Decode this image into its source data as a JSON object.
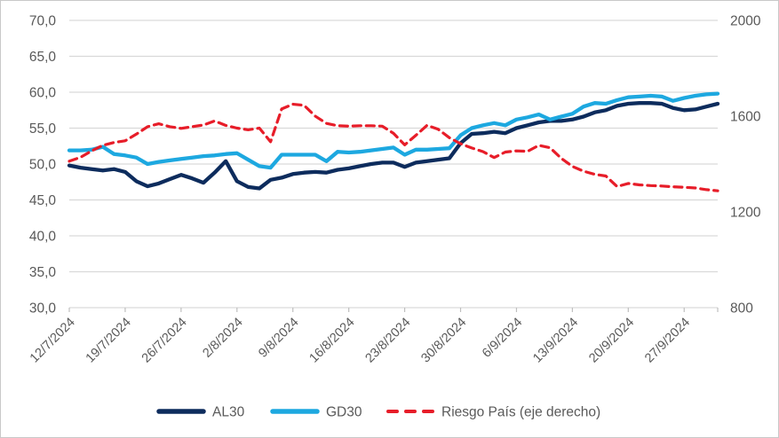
{
  "chart_data": {
    "type": "line",
    "title": "",
    "x_tick_labels": [
      "12/7/2024",
      "19/7/2024",
      "26/7/2024",
      "2/8/2024",
      "9/8/2024",
      "16/8/2024",
      "23/8/2024",
      "30/8/2024",
      "6/9/2024",
      "13/9/2024",
      "20/9/2024",
      "27/9/2024"
    ],
    "x_dates": [
      "12/7/2024",
      "15/7/2024",
      "16/7/2024",
      "17/7/2024",
      "18/7/2024",
      "19/7/2024",
      "22/7/2024",
      "23/7/2024",
      "24/7/2024",
      "25/7/2024",
      "26/7/2024",
      "29/7/2024",
      "30/7/2024",
      "31/7/2024",
      "1/8/2024",
      "2/8/2024",
      "5/8/2024",
      "6/8/2024",
      "7/8/2024",
      "8/8/2024",
      "9/8/2024",
      "12/8/2024",
      "13/8/2024",
      "14/8/2024",
      "15/8/2024",
      "16/8/2024",
      "19/8/2024",
      "20/8/2024",
      "21/8/2024",
      "22/8/2024",
      "23/8/2024",
      "26/8/2024",
      "27/8/2024",
      "28/8/2024",
      "29/8/2024",
      "30/8/2024",
      "2/9/2024",
      "3/9/2024",
      "4/9/2024",
      "5/9/2024",
      "6/9/2024",
      "9/9/2024",
      "10/9/2024",
      "11/9/2024",
      "12/9/2024",
      "13/9/2024",
      "16/9/2024",
      "17/9/2024",
      "18/9/2024",
      "19/9/2024",
      "20/9/2024",
      "23/9/2024",
      "24/9/2024",
      "25/9/2024",
      "26/9/2024",
      "27/9/2024",
      "30/9/2024",
      "1/10/2024",
      "2/10/2024"
    ],
    "series": [
      {
        "name": "AL30",
        "axis": "left",
        "color": "#0d2c5d",
        "style": "solid",
        "values": [
          49.8,
          49.5,
          49.3,
          49.1,
          49.3,
          48.9,
          47.6,
          46.9,
          47.3,
          47.9,
          48.5,
          48.0,
          47.4,
          48.8,
          50.4,
          47.6,
          46.8,
          46.6,
          47.8,
          48.1,
          48.6,
          48.8,
          48.9,
          48.8,
          49.2,
          49.4,
          49.7,
          50.0,
          50.2,
          50.2,
          49.6,
          50.2,
          50.4,
          50.6,
          50.8,
          52.9,
          54.2,
          54.3,
          54.5,
          54.3,
          55.0,
          55.4,
          55.8,
          56.0,
          56.0,
          56.2,
          56.6,
          57.2,
          57.5,
          58.1,
          58.4,
          58.5,
          58.5,
          58.4,
          57.8,
          57.5,
          57.6,
          58.0,
          58.4
        ]
      },
      {
        "name": "GD30",
        "axis": "left",
        "color": "#1da8e0",
        "style": "solid",
        "values": [
          51.9,
          51.9,
          52.0,
          52.4,
          51.4,
          51.2,
          50.9,
          50.0,
          50.3,
          50.5,
          50.7,
          50.9,
          51.1,
          51.2,
          51.4,
          51.5,
          50.6,
          49.7,
          49.5,
          51.3,
          51.3,
          51.3,
          51.3,
          50.4,
          51.7,
          51.6,
          51.7,
          51.9,
          52.1,
          52.3,
          51.3,
          52.0,
          52.0,
          52.1,
          52.2,
          54.0,
          55.0,
          55.4,
          55.7,
          55.4,
          56.2,
          56.5,
          56.9,
          56.2,
          56.6,
          57.0,
          58.0,
          58.5,
          58.4,
          58.9,
          59.3,
          59.4,
          59.5,
          59.4,
          58.8,
          59.2,
          59.5,
          59.7,
          59.8
        ]
      },
      {
        "name": "Riesgo País (eje derecho)",
        "axis": "right",
        "color": "#e71d29",
        "style": "dashed",
        "values": [
          1412,
          1428,
          1455,
          1478,
          1490,
          1497,
          1525,
          1556,
          1568,
          1556,
          1549,
          1556,
          1563,
          1580,
          1561,
          1550,
          1543,
          1550,
          1493,
          1630,
          1650,
          1645,
          1600,
          1570,
          1560,
          1558,
          1560,
          1560,
          1558,
          1528,
          1480,
          1520,
          1562,
          1545,
          1510,
          1485,
          1467,
          1452,
          1427,
          1450,
          1455,
          1453,
          1478,
          1468,
          1424,
          1390,
          1370,
          1357,
          1350,
          1306,
          1319,
          1313,
          1310,
          1308,
          1305,
          1303,
          1300,
          1293,
          1288
        ]
      }
    ],
    "left_axis": {
      "min": 30,
      "max": 70,
      "step": 5,
      "tick_labels": [
        "70,0",
        "65,0",
        "60,0",
        "55,0",
        "50,0",
        "45,0",
        "40,0",
        "35,0",
        "30,0"
      ]
    },
    "right_axis": {
      "min": 800,
      "max": 2000,
      "step": 400,
      "tick_labels": [
        "2000",
        "1600",
        "1200",
        "800"
      ]
    },
    "legend_position": "bottom",
    "grid": true
  },
  "colors": {
    "grid": "#d9d9d9",
    "tick": "#bfbfbf",
    "axis_text": "#595959",
    "background": "#ffffff",
    "border": "#c9c9c9"
  }
}
